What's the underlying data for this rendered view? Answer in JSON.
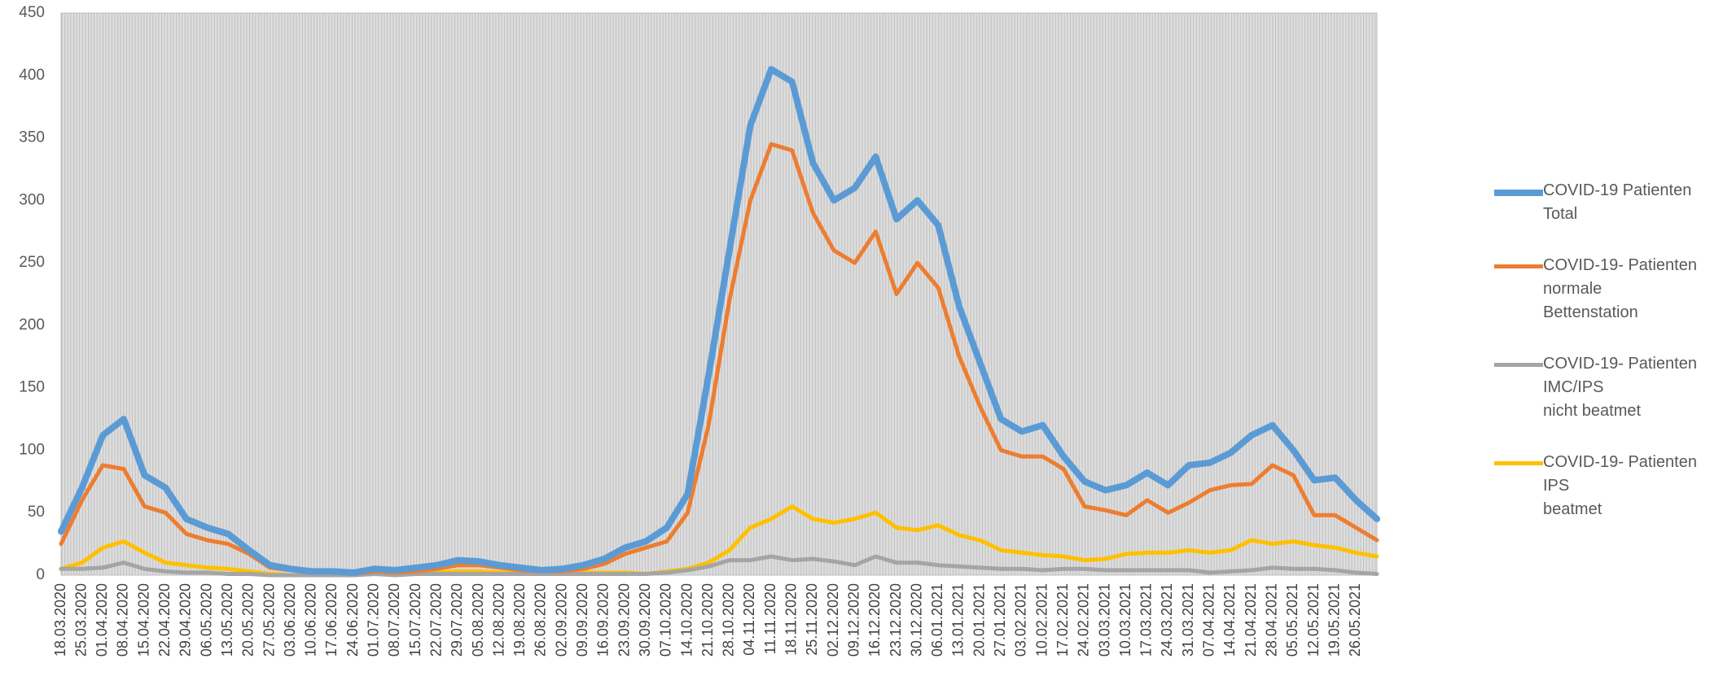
{
  "chart_data": {
    "type": "line",
    "categories": [
      "18.03.2020",
      "25.03.2020",
      "01.04.2020",
      "08.04.2020",
      "15.04.2020",
      "22.04.2020",
      "29.04.2020",
      "06.05.2020",
      "13.05.2020",
      "20.05.2020",
      "27.05.2020",
      "03.06.2020",
      "10.06.2020",
      "17.06.2020",
      "24.06.2020",
      "01.07.2020",
      "08.07.2020",
      "15.07.2020",
      "22.07.2020",
      "29.07.2020",
      "05.08.2020",
      "12.08.2020",
      "19.08.2020",
      "26.08.2020",
      "02.09.2020",
      "09.09.2020",
      "16.09.2020",
      "23.09.2020",
      "30.09.2020",
      "07.10.2020",
      "14.10.2020",
      "21.10.2020",
      "28.10.2020",
      "04.11.2020",
      "11.11.2020",
      "18.11.2020",
      "25.11.2020",
      "02.12.2020",
      "09.12.2020",
      "16.12.2020",
      "23.12.2020",
      "30.12.2020",
      "06.01.2021",
      "13.01.2021",
      "20.01.2021",
      "27.01.2021",
      "03.02.2021",
      "10.02.2021",
      "17.02.2021",
      "24.02.2021",
      "03.03.2021",
      "10.03.2021",
      "17.03.2021",
      "24.03.2021",
      "31.03.2021",
      "07.04.2021",
      "14.04.2021",
      "21.04.2021",
      "28.04.2021",
      "05.05.2021",
      "12.05.2021",
      "19.05.2021",
      "26.05.2021",
      null
    ],
    "series": [
      {
        "name": "COVID-19 Patienten\nTotal",
        "color": "#5b9bd5",
        "values": [
          35,
          70,
          112,
          125,
          80,
          70,
          45,
          38,
          33,
          20,
          8,
          5,
          3,
          3,
          2,
          5,
          4,
          6,
          8,
          12,
          11,
          8,
          6,
          4,
          5,
          8,
          13,
          22,
          27,
          38,
          65,
          160,
          260,
          360,
          405,
          395,
          330,
          300,
          310,
          335,
          285,
          300,
          280,
          215,
          170,
          125,
          115,
          120,
          95,
          75,
          68,
          72,
          82,
          72,
          88,
          90,
          98,
          112,
          120,
          100,
          76,
          78,
          60,
          45
        ]
      },
      {
        "name": "COVID-19- Patienten\nnormale\nBettenstation",
        "color": "#ed7d31",
        "values": [
          25,
          60,
          88,
          85,
          55,
          50,
          33,
          28,
          25,
          17,
          6,
          4,
          2,
          2,
          1,
          3,
          2,
          3,
          5,
          8,
          8,
          6,
          4,
          3,
          3,
          5,
          9,
          17,
          22,
          27,
          50,
          120,
          220,
          300,
          345,
          340,
          290,
          260,
          250,
          275,
          225,
          250,
          230,
          175,
          135,
          100,
          95,
          95,
          85,
          55,
          52,
          48,
          60,
          50,
          58,
          68,
          72,
          73,
          88,
          80,
          48,
          48,
          38,
          28
        ]
      },
      {
        "name": "COVID-19- Patienten\nIMC/IPS\nnicht beatmet",
        "color": "#a5a5a5",
        "values": [
          5,
          5,
          6,
          10,
          5,
          3,
          2,
          2,
          1,
          1,
          0,
          0,
          0,
          0,
          0,
          1,
          0,
          1,
          1,
          1,
          1,
          1,
          1,
          1,
          1,
          1,
          1,
          1,
          1,
          2,
          4,
          7,
          12,
          12,
          15,
          12,
          13,
          11,
          8,
          15,
          10,
          10,
          8,
          7,
          6,
          5,
          5,
          4,
          5,
          5,
          4,
          4,
          4,
          4,
          4,
          2,
          3,
          4,
          6,
          5,
          5,
          4,
          2,
          1
        ]
      },
      {
        "name": "COVID-19- Patienten\nIPS\nbeatmet",
        "color": "#ffc000",
        "values": [
          5,
          10,
          22,
          27,
          18,
          10,
          8,
          6,
          5,
          3,
          1,
          0,
          0,
          0,
          0,
          1,
          1,
          1,
          2,
          3,
          3,
          2,
          2,
          1,
          1,
          2,
          2,
          2,
          1,
          3,
          5,
          10,
          20,
          38,
          45,
          55,
          45,
          42,
          45,
          50,
          38,
          36,
          40,
          32,
          28,
          20,
          18,
          16,
          15,
          12,
          13,
          17,
          18,
          18,
          20,
          18,
          20,
          28,
          25,
          27,
          24,
          22,
          18,
          15
        ]
      }
    ],
    "ylim": [
      0,
      450
    ],
    "yticks": [
      0,
      50,
      100,
      150,
      200,
      250,
      300,
      350,
      400,
      450
    ],
    "grid": false,
    "legend": "right"
  }
}
